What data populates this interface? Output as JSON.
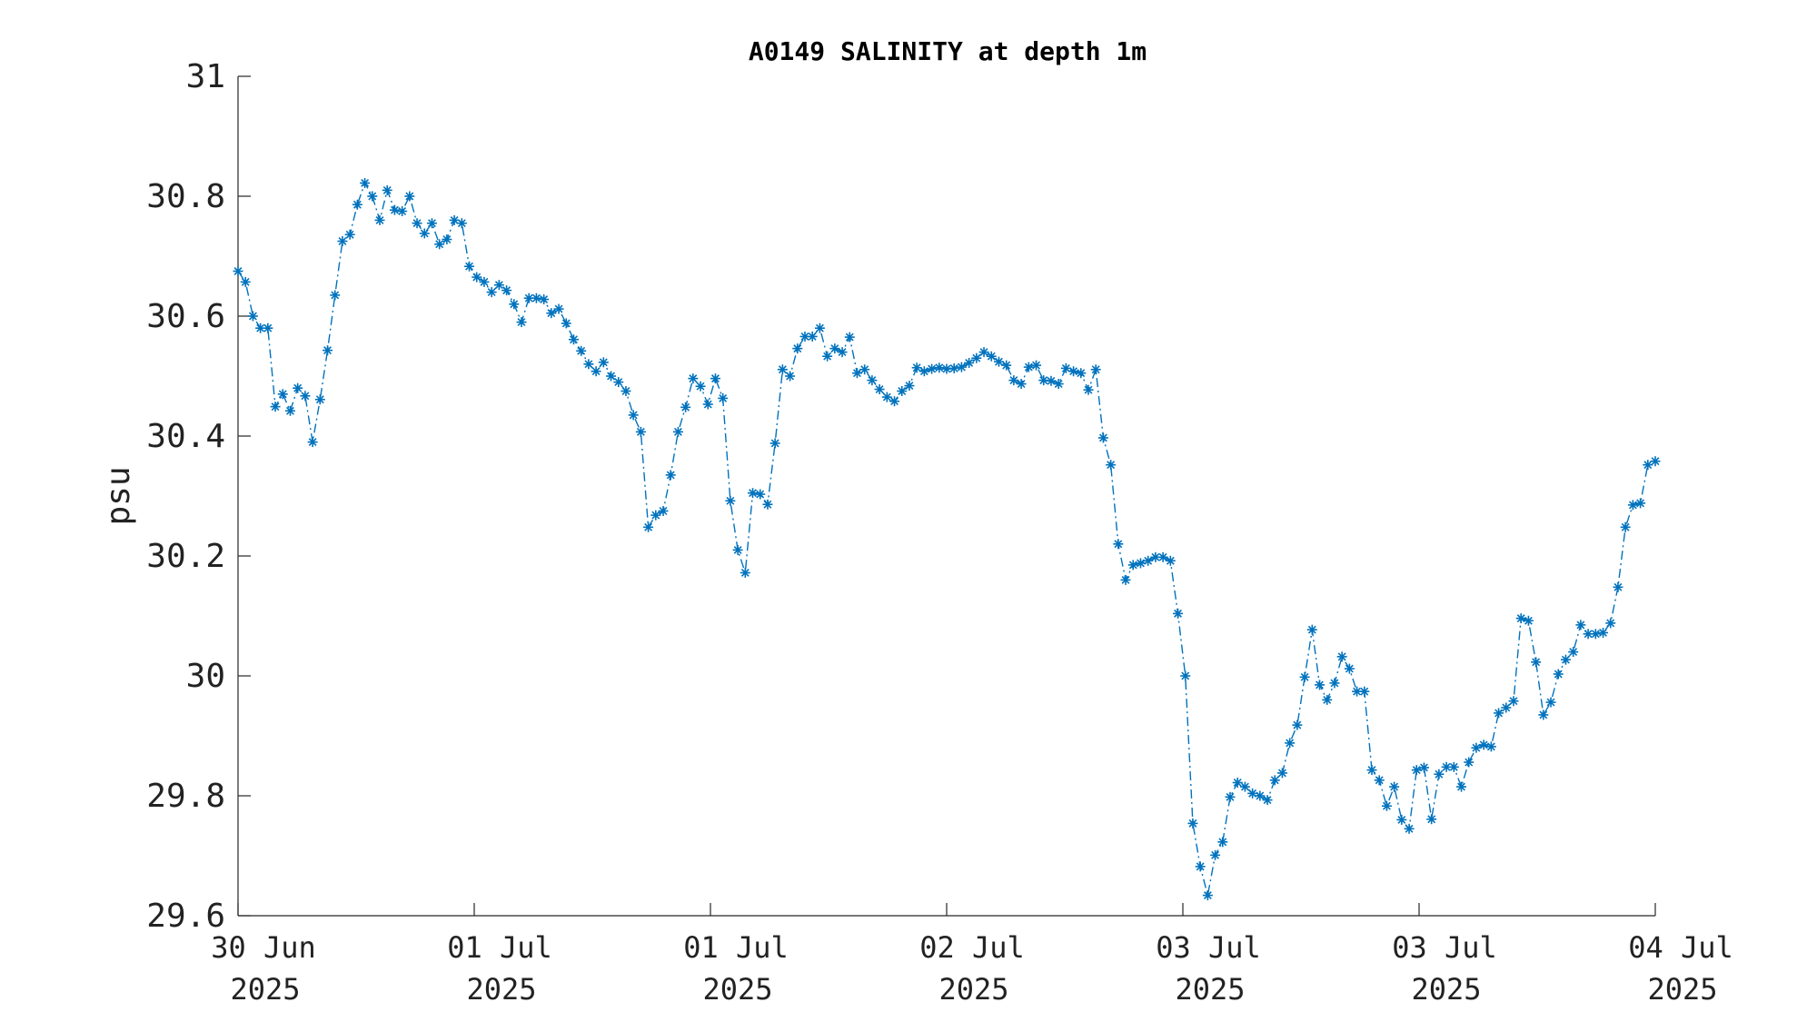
{
  "chart_data": {
    "type": "line",
    "title": "A0149 SALINITY at depth 1m",
    "xlabel": "",
    "ylabel": "psu",
    "ylim": [
      29.6,
      31
    ],
    "yticks": [
      29.6,
      29.8,
      30,
      30.2,
      30.4,
      30.6,
      30.8,
      31
    ],
    "ytick_labels": [
      "29.6",
      "29.8",
      "30",
      "30.2",
      "30.4",
      "30.6",
      "30.8",
      "31"
    ],
    "xlim": [
      "2025-06-30 00:00",
      "2025-07-04 00:00"
    ],
    "xticks": [
      {
        "line1": "30 Jun",
        "line2": "2025"
      },
      {
        "line1": "01 Jul",
        "line2": "2025"
      },
      {
        "line1": "01 Jul",
        "line2": "2025"
      },
      {
        "line1": "02 Jul",
        "line2": "2025"
      },
      {
        "line1": "03 Jul",
        "line2": "2025"
      },
      {
        "line1": "03 Jul",
        "line2": "2025"
      },
      {
        "line1": "04 Jul",
        "line2": "2025"
      }
    ],
    "grid": false,
    "line_style": "dash-dot",
    "marker": "asterisk",
    "color": "#0072BD",
    "series": [
      {
        "values": [
          30.675,
          30.657,
          30.6,
          30.58,
          30.58,
          30.449,
          30.47,
          30.442,
          30.48,
          30.467,
          30.39,
          30.461,
          30.543,
          30.635,
          30.725,
          30.736,
          30.786,
          30.822,
          30.8,
          30.76,
          30.81,
          30.777,
          30.775,
          30.8,
          30.755,
          30.738,
          30.755,
          30.72,
          30.728,
          30.76,
          30.755,
          30.683,
          30.665,
          30.657,
          30.64,
          30.652,
          30.643,
          30.62,
          30.59,
          30.63,
          30.63,
          30.628,
          30.605,
          30.612,
          30.588,
          30.561,
          30.542,
          30.52,
          30.508,
          30.523,
          30.5,
          30.49,
          30.475,
          30.435,
          30.407,
          30.248,
          30.268,
          30.275,
          30.335,
          30.407,
          30.448,
          30.496,
          30.483,
          30.453,
          30.496,
          30.463,
          30.292,
          30.21,
          30.172,
          30.305,
          30.303,
          30.286,
          30.388,
          30.511,
          30.5,
          30.546,
          30.566,
          30.566,
          30.58,
          30.533,
          30.546,
          30.54,
          30.565,
          30.505,
          30.511,
          30.493,
          30.478,
          30.465,
          30.458,
          30.475,
          30.484,
          30.514,
          30.508,
          30.512,
          30.514,
          30.512,
          30.513,
          30.515,
          30.522,
          30.53,
          30.54,
          30.533,
          30.524,
          30.518,
          30.493,
          30.487,
          30.515,
          30.518,
          30.493,
          30.492,
          30.487,
          30.513,
          30.508,
          30.505,
          30.477,
          30.511,
          30.397,
          30.352,
          30.22,
          30.16,
          30.185,
          30.188,
          30.192,
          30.198,
          30.198,
          30.192,
          30.104,
          30.0,
          29.754,
          29.682,
          29.634,
          29.701,
          29.723,
          29.798,
          29.822,
          29.815,
          29.804,
          29.8,
          29.793,
          29.826,
          29.838,
          29.888,
          29.918,
          29.998,
          30.077,
          29.985,
          29.96,
          29.988,
          30.032,
          30.012,
          29.974,
          29.974,
          29.843,
          29.826,
          29.783,
          29.815,
          29.76,
          29.745,
          29.843,
          29.847,
          29.761,
          29.836,
          29.848,
          29.848,
          29.815,
          29.856,
          29.88,
          29.885,
          29.882,
          29.938,
          29.947,
          29.958,
          30.096,
          30.092,
          30.023,
          29.935,
          29.956,
          30.003,
          30.027,
          30.04,
          30.085,
          30.07,
          30.07,
          30.072,
          30.088,
          30.148,
          30.248,
          30.285,
          30.288,
          30.352,
          30.358
        ]
      }
    ]
  }
}
